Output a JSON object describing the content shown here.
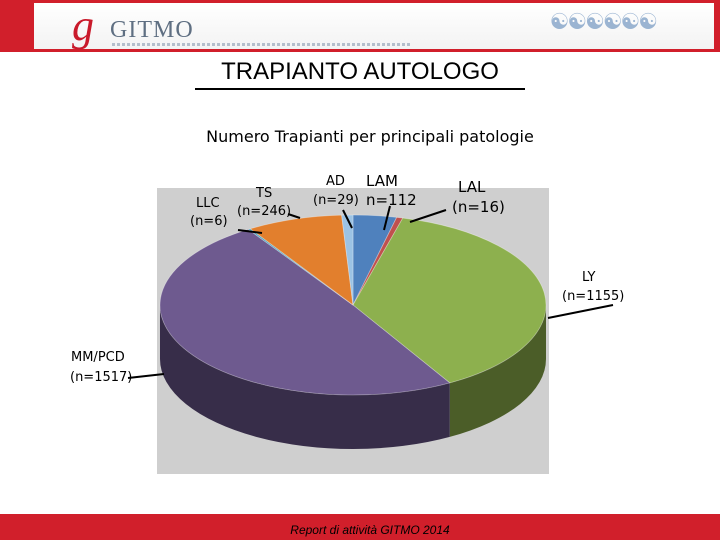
{
  "header": {
    "logo_mark": "g",
    "logo_text": "GITMO",
    "people_icon": "people-chain-icon"
  },
  "slide_title": "TRAPIANTO AUTOLOGO",
  "footer_text": "Report di attività GITMO 2014",
  "chart_data": {
    "type": "pie",
    "title": "Numero Trapianti per principali patologie",
    "three_d": true,
    "categories": [
      "LAM",
      "LAL",
      "LY",
      "MM/PCD",
      "LLC",
      "TS",
      "AD"
    ],
    "values": [
      112,
      16,
      1155,
      1517,
      6,
      246,
      29
    ],
    "labels": [
      {
        "name": "LAM",
        "count": "n=112"
      },
      {
        "name": "LAL",
        "count": "(n=16)"
      },
      {
        "name": "LY",
        "count": "(n=1155)"
      },
      {
        "name": "MM/PCD",
        "count": "(n=1517)"
      },
      {
        "name": "LLC",
        "count": "(n=6)"
      },
      {
        "name": "TS",
        "count": "(n=246)"
      },
      {
        "name": "AD",
        "count": "(n=29)"
      }
    ],
    "colors": [
      "#4f81bd",
      "#c0504d",
      "#8db04e",
      "#6e5a8f",
      "#4aa3c0",
      "#e27f2d",
      "#9cc3e4"
    ],
    "side_colors": [
      "#2f4f7a",
      "#7a2e2c",
      "#4b5d28",
      "#372d49",
      "#2a6272",
      "#8f4f1a",
      "#6085a5"
    ],
    "legend": "none"
  }
}
